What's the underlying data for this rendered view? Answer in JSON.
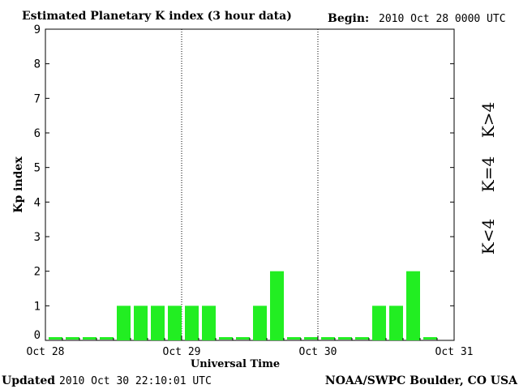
{
  "chart_data": {
    "type": "bar",
    "title": "Estimated Planetary K index (3 hour data)",
    "begin_label": "Begin:",
    "begin_value": "2010 Oct 28 0000 UTC",
    "xlabel": "Universal Time",
    "ylabel": "Kp index",
    "ylim": [
      0,
      9
    ],
    "y_ticks": [
      "0",
      "1",
      "2",
      "3",
      "4",
      "5",
      "6",
      "7",
      "8",
      "9"
    ],
    "x_ticks": [
      "Oct 28",
      "Oct 29",
      "Oct 30",
      "Oct 31"
    ],
    "bar_interval_hours": 3,
    "values": [
      0,
      0,
      0,
      0,
      1,
      1,
      1,
      1,
      1,
      1,
      0,
      0,
      1,
      2,
      0,
      0,
      0,
      0,
      0,
      1,
      1,
      2,
      0
    ],
    "grid": "dotted vertical lines at day boundaries",
    "legend": [
      {
        "label": "K>4",
        "color": "#ff2a00"
      },
      {
        "label": "K=4",
        "color": "#ffd400"
      },
      {
        "label": "K<4",
        "color": "#22ee22"
      }
    ],
    "bar_color": "#22ee22",
    "legend_placement": "right"
  },
  "footer": {
    "updated_label": "Updated",
    "updated_value": "2010 Oct 30 22:10:01 UTC",
    "source": "NOAA/SWPC Boulder, CO USA"
  }
}
